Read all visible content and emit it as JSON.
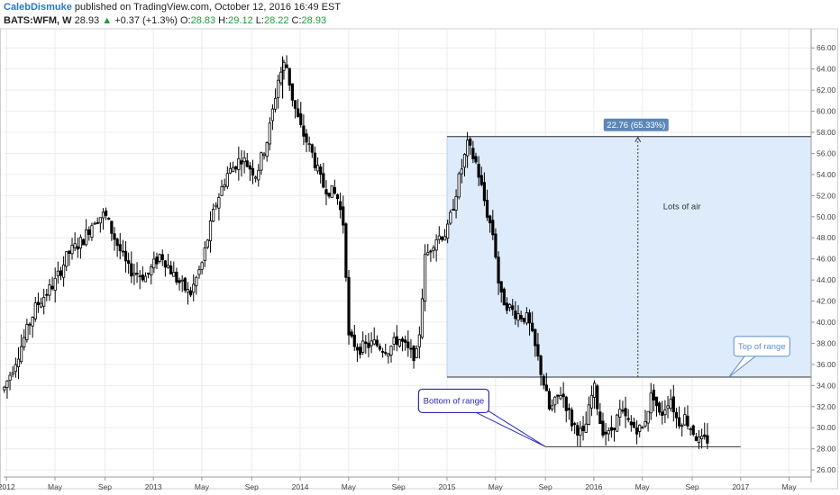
{
  "header": {
    "author": "CalebDismuke",
    "published_text": " published on TradingView.com, October 12, 2016 16:49 EST",
    "symbol": "BATS:WFM, W",
    "last": "28.93",
    "arrow": "▲",
    "change": "+0.37 (+1.3%)",
    "o_label": "O:",
    "o_value": "28.83",
    "h_label": "H:",
    "h_value": "29.12",
    "l_label": "L:",
    "l_value": "28.22",
    "c_label": "C:",
    "c_value": "28.93"
  },
  "colors": {
    "candle": "#000000",
    "range_box_fill": "#deebfb",
    "range_box_edge": "#b9d1f0",
    "measure_badge": "#5b87b8",
    "callout_border": "#2a2ab8",
    "callout_text": "#2a2ab8",
    "callout_blue": "#5e8fd0",
    "grid": "#ececec"
  },
  "chart_data": {
    "type": "candlestick",
    "symbol": "BATS:WFM",
    "timeframe": "W",
    "y_ticks": [
      "26.00",
      "28.00",
      "30.00",
      "32.00",
      "34.00",
      "36.00",
      "38.00",
      "40.00",
      "42.00",
      "44.00",
      "46.00",
      "48.00",
      "50.00",
      "52.00",
      "54.00",
      "56.00",
      "58.00",
      "60.00",
      "62.00",
      "64.00",
      "66.00"
    ],
    "ylim": [
      25.5,
      67.3
    ],
    "x_labels": [
      {
        "label": "2012",
        "t": 2012.0
      },
      {
        "label": "May",
        "t": 2012.33
      },
      {
        "label": "Sep",
        "t": 2012.67
      },
      {
        "label": "2013",
        "t": 2013.0
      },
      {
        "label": "May",
        "t": 2013.33
      },
      {
        "label": "Sep",
        "t": 2013.67
      },
      {
        "label": "2014",
        "t": 2014.0
      },
      {
        "label": "May",
        "t": 2014.33
      },
      {
        "label": "Sep",
        "t": 2014.67
      },
      {
        "label": "2015",
        "t": 2015.0
      },
      {
        "label": "May",
        "t": 2015.33
      },
      {
        "label": "Sep",
        "t": 2015.67
      },
      {
        "label": "2016",
        "t": 2016.0
      },
      {
        "label": "May",
        "t": 2016.33
      },
      {
        "label": "Sep",
        "t": 2016.67
      },
      {
        "label": "2017",
        "t": 2017.0
      },
      {
        "label": "May",
        "t": 2017.33
      }
    ],
    "xlim": [
      2011.98,
      2017.48
    ],
    "price_path": [
      [
        2011.98,
        33.6
      ],
      [
        2012.08,
        37.0
      ],
      [
        2012.2,
        41.5
      ],
      [
        2012.33,
        43.8
      ],
      [
        2012.42,
        46.5
      ],
      [
        2012.52,
        47.8
      ],
      [
        2012.6,
        49.8
      ],
      [
        2012.67,
        50.2
      ],
      [
        2012.75,
        47.5
      ],
      [
        2012.83,
        45.0
      ],
      [
        2012.95,
        44.3
      ],
      [
        2013.05,
        46.5
      ],
      [
        2013.15,
        44.2
      ],
      [
        2013.25,
        42.6
      ],
      [
        2013.33,
        45.5
      ],
      [
        2013.42,
        51.0
      ],
      [
        2013.5,
        54.0
      ],
      [
        2013.6,
        55.6
      ],
      [
        2013.7,
        54.0
      ],
      [
        2013.78,
        57.5
      ],
      [
        2013.85,
        63.0
      ],
      [
        2013.9,
        64.8
      ],
      [
        2013.95,
        61.0
      ],
      [
        2014.0,
        58.5
      ],
      [
        2014.08,
        56.0
      ],
      [
        2014.15,
        53.0
      ],
      [
        2014.25,
        52.0
      ],
      [
        2014.3,
        49.0
      ],
      [
        2014.33,
        38.5
      ],
      [
        2014.4,
        37.5
      ],
      [
        2014.5,
        38.0
      ],
      [
        2014.6,
        37.4
      ],
      [
        2014.67,
        38.5
      ],
      [
        2014.75,
        37.0
      ],
      [
        2014.8,
        36.9
      ],
      [
        2014.85,
        46.0
      ],
      [
        2014.92,
        48.0
      ],
      [
        2015.0,
        48.5
      ],
      [
        2015.08,
        53.5
      ],
      [
        2015.14,
        56.8
      ],
      [
        2015.2,
        55.0
      ],
      [
        2015.27,
        50.5
      ],
      [
        2015.32,
        48.0
      ],
      [
        2015.36,
        42.5
      ],
      [
        2015.45,
        41.0
      ],
      [
        2015.55,
        40.3
      ],
      [
        2015.62,
        36.5
      ],
      [
        2015.67,
        33.5
      ],
      [
        2015.7,
        31.5
      ],
      [
        2015.78,
        33.5
      ],
      [
        2015.85,
        30.5
      ],
      [
        2015.93,
        29.2
      ],
      [
        2016.0,
        34.0
      ],
      [
        2016.05,
        30.0
      ],
      [
        2016.1,
        29.3
      ],
      [
        2016.18,
        31.5
      ],
      [
        2016.25,
        30.2
      ],
      [
        2016.33,
        29.8
      ],
      [
        2016.4,
        33.5
      ],
      [
        2016.45,
        31.0
      ],
      [
        2016.52,
        33.0
      ],
      [
        2016.57,
        30.5
      ],
      [
        2016.62,
        31.0
      ],
      [
        2016.67,
        29.8
      ],
      [
        2016.72,
        28.6
      ],
      [
        2016.78,
        28.9
      ]
    ],
    "peak": {
      "t": 2013.88,
      "high": 65.2
    },
    "range_box": {
      "t_start": 2015.0,
      "t_end": 2017.48,
      "top": 57.6,
      "bottom": 34.8
    },
    "measure": {
      "t": 2016.3,
      "from": 34.8,
      "to": 57.6,
      "label": "22.76 (65.33%)"
    },
    "support_line": {
      "t_start": 2015.67,
      "t_end": 2017.0,
      "price": 28.2
    },
    "annotations": [
      {
        "text": "Lots of air",
        "t": 2016.6,
        "price": 50.7
      },
      {
        "text": "Top of range",
        "t": 2017.15,
        "price": 37.8
      },
      {
        "text": "Bottom of range",
        "t": 2015.15,
        "price": 32.8
      }
    ]
  }
}
